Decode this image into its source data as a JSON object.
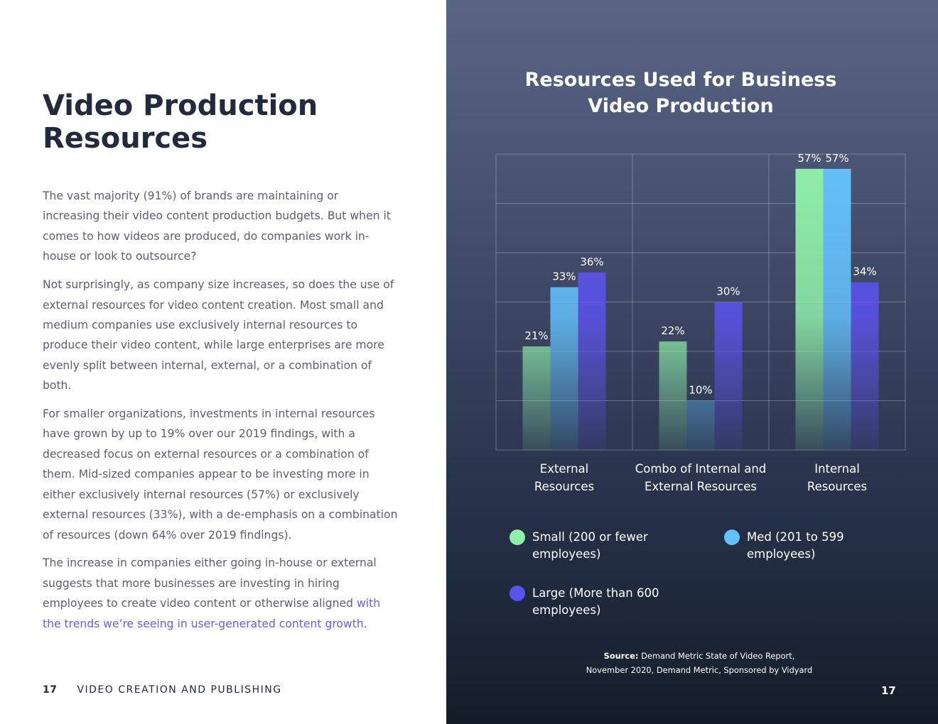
{
  "left": {
    "title_line1": "Video Production",
    "title_line2": "Resources",
    "paragraphs": [
      "The vast majority (91%) of brands are maintaining or increasing their video content production budgets. But when it comes to how videos are produced, do companies work in-house or look to outsource?",
      "Not surprisingly, as company size increases, so does the use of external resources for video content creation. Most small and medium companies use exclusively internal resources to produce their video content, while large enterprises are more evenly split between internal, external, or a combination of both.",
      "For smaller organizations, investments in internal resources have grown by up to 19% over our 2019 findings, with a decreased focus on external resources or a combination of them. Mid-sized companies appear to be investing more in either exclusively internal resources (57%) or exclusively external resources (33%), with a de-emphasis on a combination of resources (down 64% over 2019 findings)."
    ],
    "last_paragraph_text": "The increase in companies either going in-house or external suggests that more businesses are investing in hiring employees to create video content or otherwise aligned ",
    "last_paragraph_link": "with the trends we’re seeing in user-generated content growth",
    "last_paragraph_end": ".",
    "page_number": "17",
    "section_name": "VIDEO CREATION AND PUBLISHING"
  },
  "right": {
    "source_label": "Source:",
    "source_text": " Demand Metric State of Video Report,",
    "source_text_line2": "November 2020, Demand Metric, Sponsored by Vidyard",
    "page_number": "17"
  },
  "chart_data": {
    "type": "bar",
    "title": "Resources Used for Business Video Production",
    "title_line1": "Resources Used for Business",
    "title_line2": "Video Production",
    "categories": [
      [
        "External",
        "Resources"
      ],
      [
        "Combo of Internal and",
        "External Resources"
      ],
      [
        "Internal",
        "Resources"
      ]
    ],
    "series": [
      {
        "name": "Small (200 or fewer employees)",
        "label_lines": [
          "Small (200 or fewer",
          "employees)"
        ],
        "color": "#8ff0a9",
        "values": [
          21,
          22,
          57
        ]
      },
      {
        "name": "Med (201 to 599 employees)",
        "label_lines": [
          "Med (201 to 599",
          "employees)"
        ],
        "color": "#63c1fb",
        "values": [
          33,
          10,
          57
        ]
      },
      {
        "name": "Large (More than 600 employees)",
        "label_lines": [
          "Large (More than 600",
          "employees)"
        ],
        "color": "#5b53ee",
        "values": [
          36,
          30,
          34
        ]
      }
    ],
    "value_suffix": "%",
    "ylim": [
      0,
      60
    ],
    "grid": true,
    "legend_position": "bottom"
  }
}
